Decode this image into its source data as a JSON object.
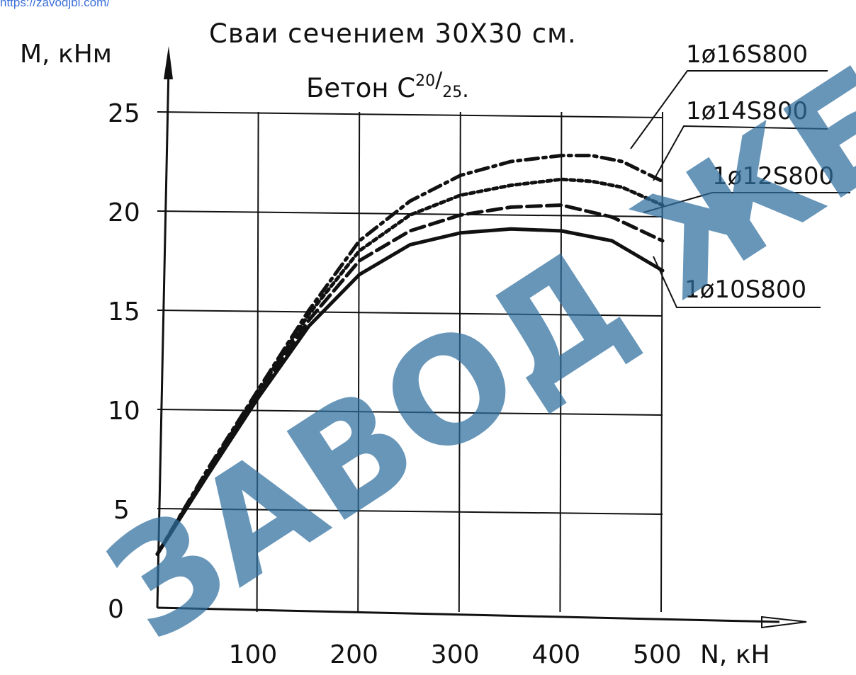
{
  "watermark_url": "https://zavodjbi.com/",
  "watermark_text": "ЗАВОД ЖБИ",
  "colors": {
    "ink": "#111111",
    "watermark": "#2f6f9f",
    "url": "#3b6fd8"
  },
  "chart_data": {
    "type": "line",
    "title": "Сваи сечением 30Х30 см.",
    "subtitle_main": "Бетон С",
    "subtitle_sup": "20",
    "subtitle_sub": "25",
    "ylabel": "М, кНм",
    "xlabel": "N, кН",
    "xlim": [
      0,
      500
    ],
    "ylim": [
      0,
      25
    ],
    "x_ticks": [
      "100",
      "200",
      "300",
      "400",
      "500"
    ],
    "y_ticks": [
      "0",
      "5",
      "10",
      "15",
      "20",
      "25"
    ],
    "grid": true,
    "series": [
      {
        "name": "1ø16S800",
        "style": "dashdot",
        "x": [
          0,
          50,
          100,
          150,
          200,
          250,
          300,
          350,
          400,
          430,
          460,
          500
        ],
        "y": [
          2.7,
          7.0,
          11.0,
          15.0,
          18.5,
          20.5,
          21.8,
          22.5,
          22.8,
          22.8,
          22.5,
          21.5
        ]
      },
      {
        "name": "1ø14S800",
        "style": "dotted",
        "x": [
          0,
          50,
          100,
          150,
          200,
          250,
          300,
          350,
          400,
          430,
          460,
          500
        ],
        "y": [
          2.7,
          6.9,
          10.9,
          14.8,
          18.0,
          19.8,
          20.8,
          21.3,
          21.6,
          21.5,
          21.2,
          20.3
        ]
      },
      {
        "name": "1ø12S800",
        "style": "dashed",
        "x": [
          0,
          50,
          100,
          150,
          200,
          250,
          300,
          350,
          400,
          450,
          500
        ],
        "y": [
          2.7,
          6.8,
          10.8,
          14.5,
          17.5,
          19.0,
          19.8,
          20.2,
          20.3,
          19.7,
          18.5
        ]
      },
      {
        "name": "1ø10S800",
        "style": "solid",
        "x": [
          0,
          50,
          100,
          150,
          200,
          250,
          300,
          350,
          400,
          450,
          500
        ],
        "y": [
          2.7,
          6.7,
          10.6,
          14.2,
          16.8,
          18.3,
          18.9,
          19.1,
          19.0,
          18.5,
          17.0
        ]
      }
    ]
  }
}
